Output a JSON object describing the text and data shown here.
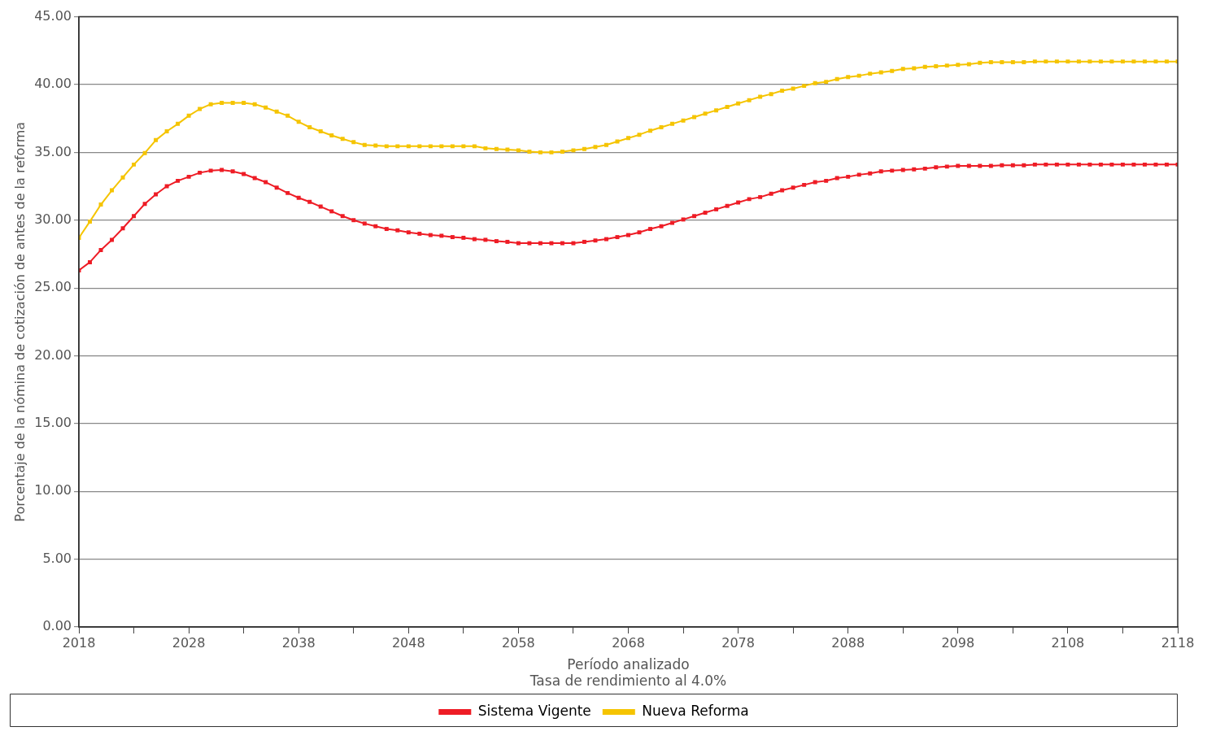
{
  "chart_data": {
    "type": "line",
    "ylabel": "Porcentaje de la nómina de cotización de antes de la reforma",
    "xlabel": "Período analizado",
    "annotations": [
      "Tasa de rendimiento al 4.0%"
    ],
    "x": [
      2018,
      2019,
      2020,
      2021,
      2022,
      2023,
      2024,
      2025,
      2026,
      2027,
      2028,
      2029,
      2030,
      2031,
      2032,
      2033,
      2034,
      2035,
      2036,
      2037,
      2038,
      2039,
      2040,
      2041,
      2042,
      2043,
      2044,
      2045,
      2046,
      2047,
      2048,
      2049,
      2050,
      2051,
      2052,
      2053,
      2054,
      2055,
      2056,
      2057,
      2058,
      2059,
      2060,
      2061,
      2062,
      2063,
      2064,
      2065,
      2066,
      2067,
      2068,
      2069,
      2070,
      2071,
      2072,
      2073,
      2074,
      2075,
      2076,
      2077,
      2078,
      2079,
      2080,
      2081,
      2082,
      2083,
      2084,
      2085,
      2086,
      2087,
      2088,
      2089,
      2090,
      2091,
      2092,
      2093,
      2094,
      2095,
      2096,
      2097,
      2098,
      2099,
      2100,
      2101,
      2102,
      2103,
      2104,
      2105,
      2106,
      2107,
      2108,
      2109,
      2110,
      2111,
      2112,
      2113,
      2114,
      2115,
      2116,
      2117,
      2118
    ],
    "series": [
      {
        "name": "Sistema Vigente",
        "color": "#ee1c25",
        "values": [
          26.3,
          26.9,
          27.8,
          28.55,
          29.4,
          30.3,
          31.2,
          31.9,
          32.5,
          32.9,
          33.2,
          33.5,
          33.65,
          33.7,
          33.6,
          33.4,
          33.1,
          32.8,
          32.4,
          32.0,
          31.65,
          31.35,
          31.0,
          30.65,
          30.3,
          30.0,
          29.75,
          29.55,
          29.35,
          29.25,
          29.1,
          29.0,
          28.9,
          28.85,
          28.75,
          28.7,
          28.6,
          28.55,
          28.45,
          28.4,
          28.3,
          28.3,
          28.3,
          28.3,
          28.3,
          28.3,
          28.4,
          28.5,
          28.6,
          28.75,
          28.9,
          29.1,
          29.35,
          29.55,
          29.8,
          30.05,
          30.3,
          30.55,
          30.8,
          31.05,
          31.3,
          31.55,
          31.7,
          31.95,
          32.2,
          32.4,
          32.6,
          32.8,
          32.9,
          33.1,
          33.2,
          33.35,
          33.45,
          33.6,
          33.65,
          33.7,
          33.75,
          33.8,
          33.9,
          33.95,
          34.0,
          34.0,
          34.0,
          34.0,
          34.05,
          34.05,
          34.05,
          34.1,
          34.1,
          34.1,
          34.1,
          34.1,
          34.1,
          34.1,
          34.1,
          34.1,
          34.1,
          34.1,
          34.1,
          34.1,
          34.1
        ]
      },
      {
        "name": "Nueva Reforma",
        "color": "#f5c400",
        "values": [
          28.7,
          29.9,
          31.15,
          32.2,
          33.15,
          34.1,
          34.95,
          35.9,
          36.55,
          37.1,
          37.7,
          38.2,
          38.55,
          38.65,
          38.65,
          38.65,
          38.55,
          38.3,
          38.0,
          37.7,
          37.25,
          36.85,
          36.55,
          36.25,
          36.0,
          35.75,
          35.55,
          35.5,
          35.45,
          35.45,
          35.45,
          35.45,
          35.45,
          35.45,
          35.45,
          35.45,
          35.45,
          35.3,
          35.25,
          35.2,
          35.15,
          35.05,
          35.0,
          35.0,
          35.05,
          35.15,
          35.25,
          35.4,
          35.55,
          35.8,
          36.05,
          36.3,
          36.6,
          36.85,
          37.1,
          37.35,
          37.6,
          37.85,
          38.1,
          38.35,
          38.6,
          38.85,
          39.1,
          39.3,
          39.55,
          39.7,
          39.9,
          40.1,
          40.2,
          40.4,
          40.55,
          40.65,
          40.8,
          40.9,
          41.0,
          41.15,
          41.2,
          41.3,
          41.35,
          41.4,
          41.45,
          41.5,
          41.6,
          41.65,
          41.65,
          41.65,
          41.65,
          41.7,
          41.7,
          41.7,
          41.7,
          41.7,
          41.7,
          41.7,
          41.7,
          41.7,
          41.7,
          41.7,
          41.7,
          41.7,
          41.7
        ]
      }
    ],
    "xlim": [
      2018,
      2118
    ],
    "xticks": [
      2018,
      {
        "value": 2023,
        "label": null
      },
      2028,
      {
        "value": 2033,
        "label": null
      },
      2038,
      {
        "value": 2043,
        "label": null
      },
      2048,
      {
        "value": 2053,
        "label": null
      },
      2058,
      {
        "value": 2063,
        "label": null
      },
      2068,
      {
        "value": 2073,
        "label": null
      },
      2078,
      {
        "value": 2083,
        "label": null
      },
      2088,
      {
        "value": 2093,
        "label": null
      },
      2098,
      {
        "value": 2103,
        "label": null
      },
      2108,
      {
        "value": 2113,
        "label": null
      },
      2118
    ],
    "ylim": [
      0,
      45
    ],
    "yticks": [
      {
        "value": 0,
        "label": "0.00"
      },
      {
        "value": 5,
        "label": "5.00"
      },
      {
        "value": 10,
        "label": "10.00"
      },
      {
        "value": 15,
        "label": "15.00"
      },
      {
        "value": 20,
        "label": "20.00"
      },
      {
        "value": 25,
        "label": "25.00"
      },
      {
        "value": 30,
        "label": "30.00"
      },
      {
        "value": 35,
        "label": "35.00"
      },
      {
        "value": 40,
        "label": "40.00"
      },
      {
        "value": 45,
        "label": "45.00"
      }
    ],
    "grid": "y",
    "legend": "bottom",
    "marker": "square",
    "line_style": "solid"
  }
}
